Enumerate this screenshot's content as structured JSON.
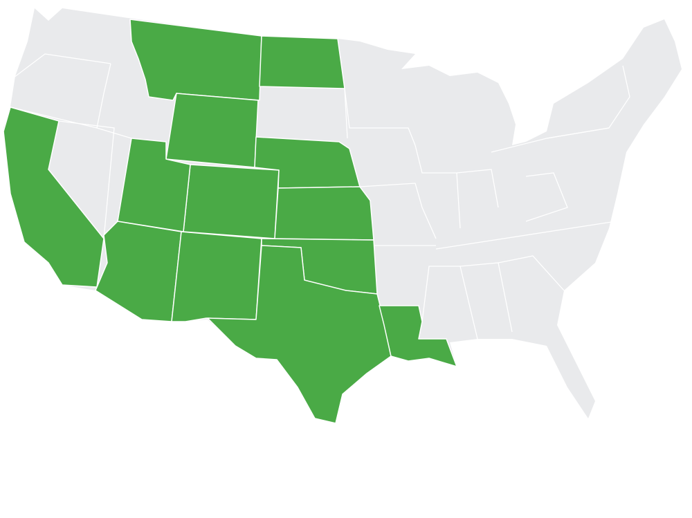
{
  "map": {
    "colors": {
      "highlighted": "#4aaa46",
      "base": "#e9eaec",
      "border": "#ffffff",
      "background": "#ffffff"
    },
    "states": {
      "MT": {
        "highlighted": true
      },
      "ND": {
        "highlighted": true
      },
      "WY": {
        "highlighted": true
      },
      "NE": {
        "highlighted": true
      },
      "CO": {
        "highlighted": true
      },
      "KS": {
        "highlighted": true
      },
      "UT": {
        "highlighted": true
      },
      "CA": {
        "highlighted": true
      },
      "AZ": {
        "highlighted": true
      },
      "NM": {
        "highlighted": true
      },
      "OK": {
        "highlighted": true
      },
      "TX": {
        "highlighted": true
      },
      "LA": {
        "highlighted": true
      }
    }
  }
}
